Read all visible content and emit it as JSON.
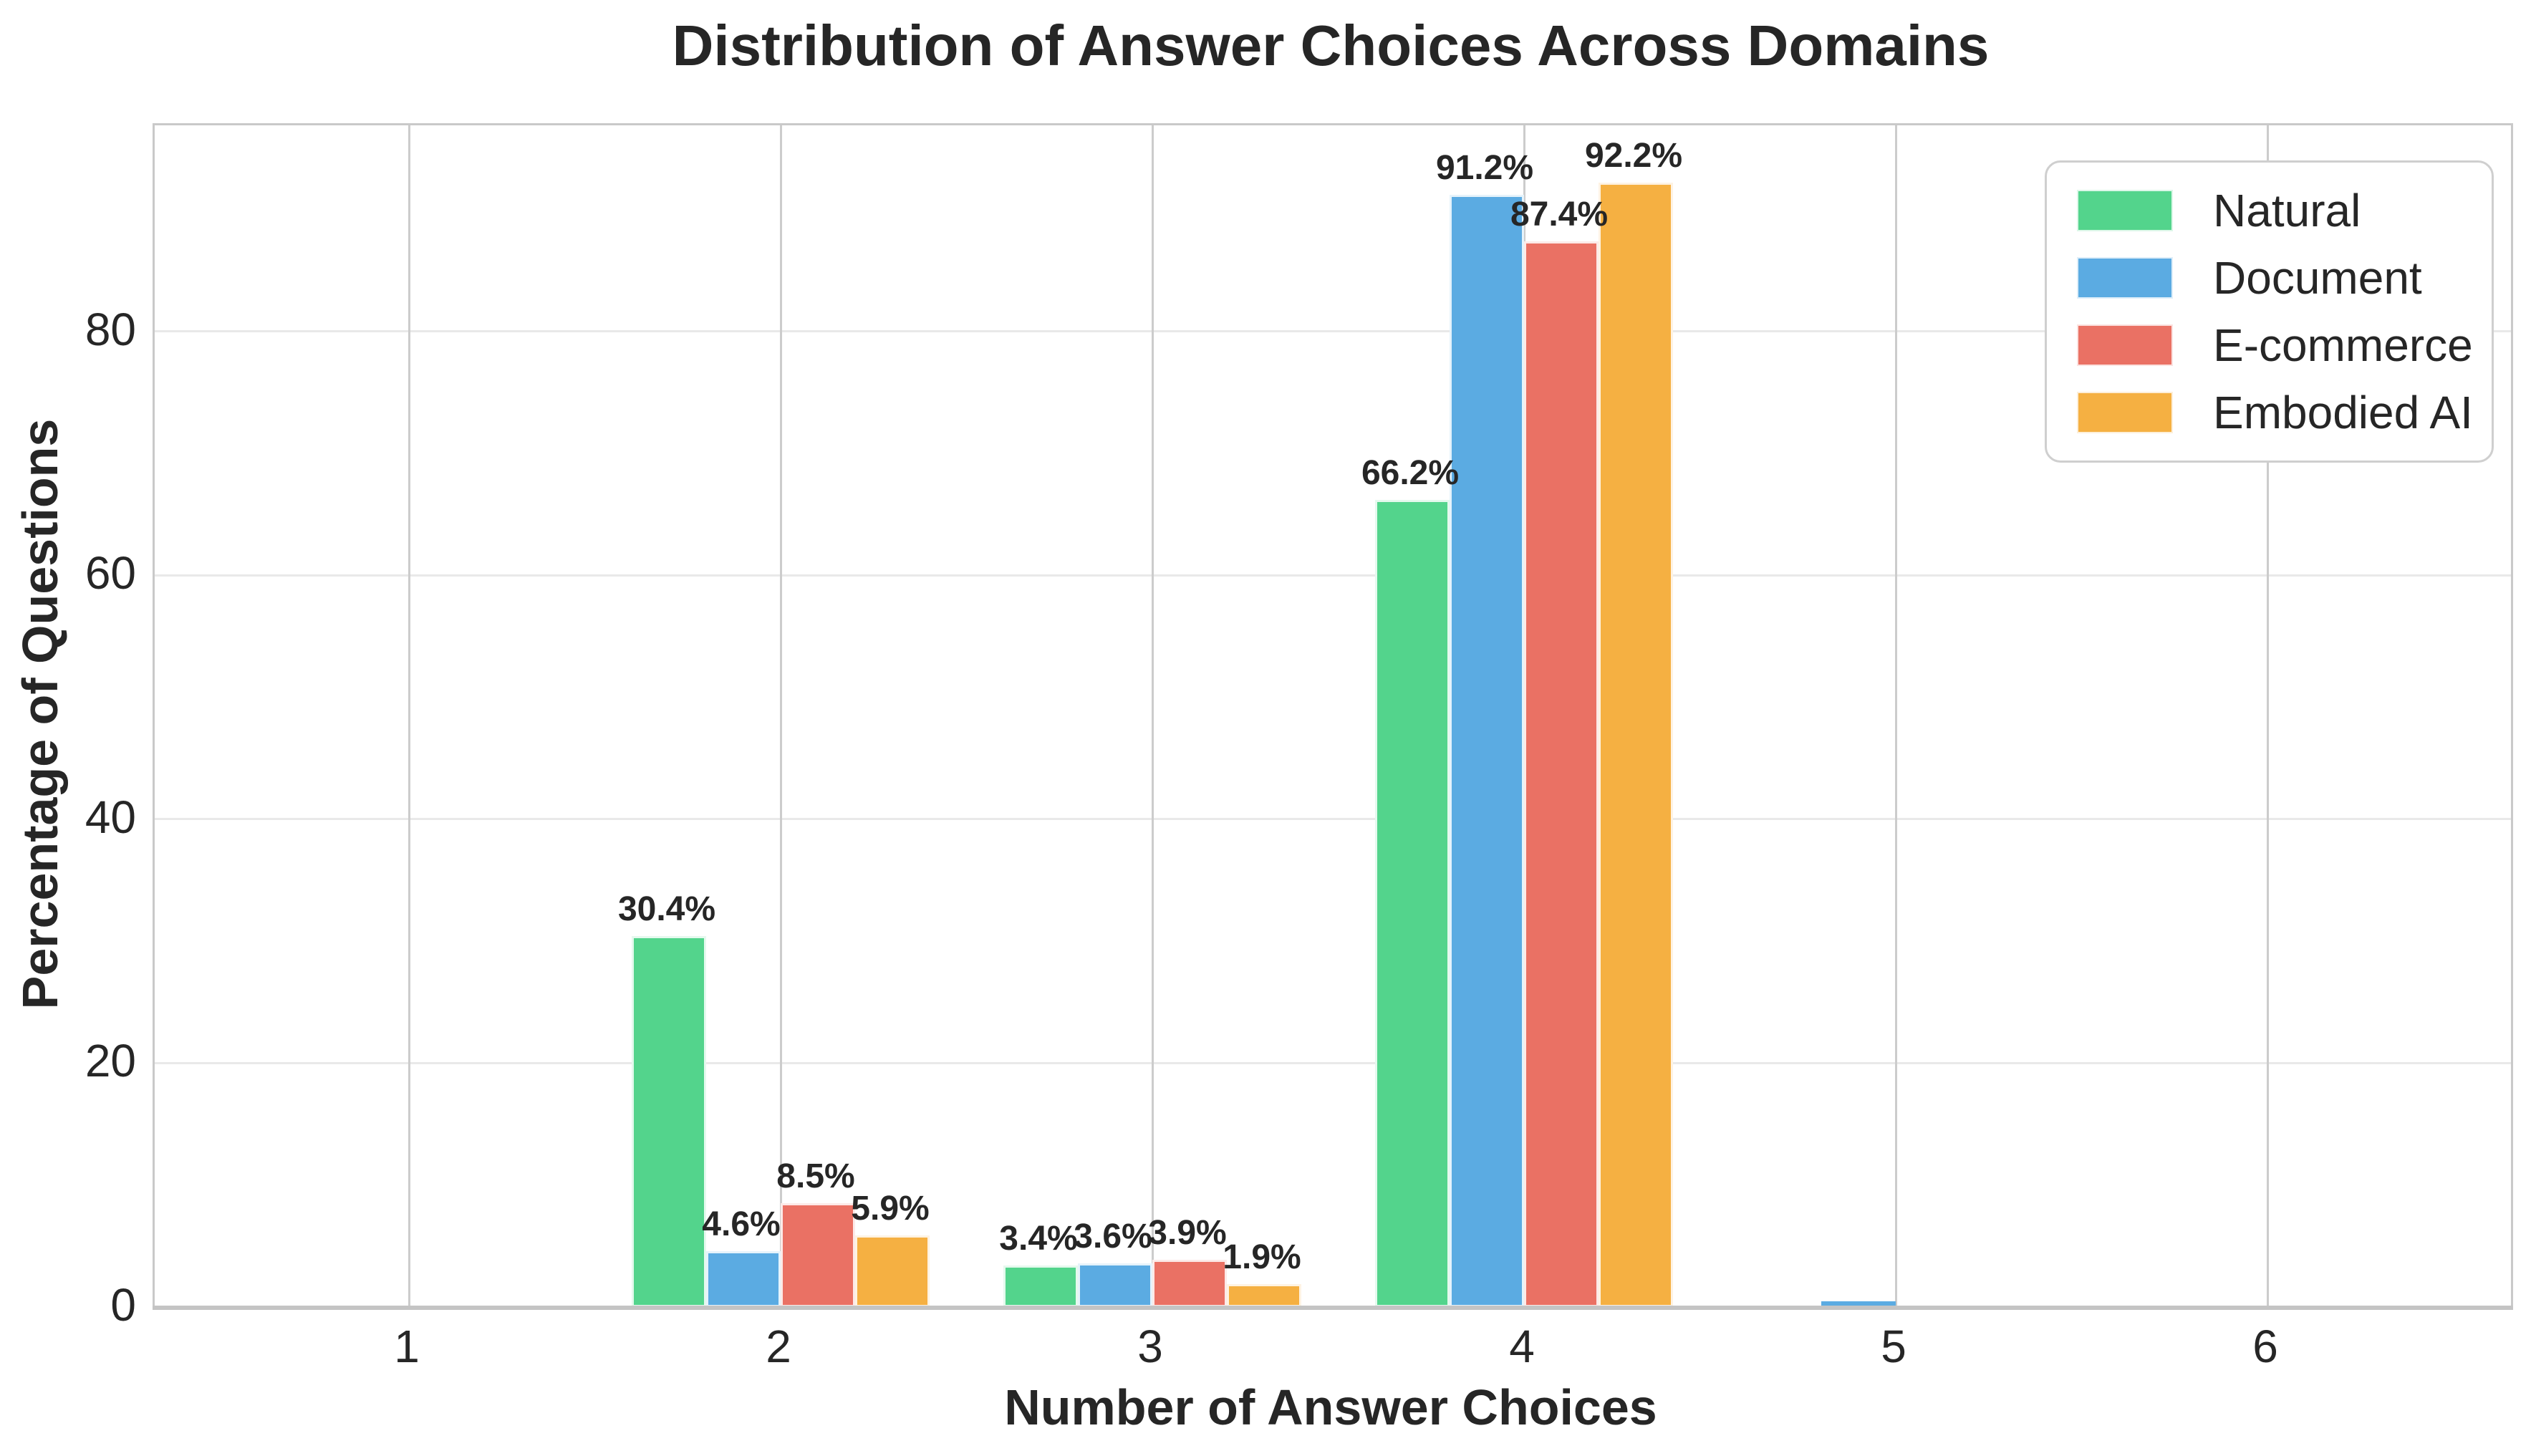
{
  "chart_data": {
    "type": "bar",
    "title": "Distribution of Answer Choices Across Domains",
    "xlabel": "Number of Answer Choices",
    "ylabel": "Percentage of Questions",
    "categories": [
      "1",
      "2",
      "3",
      "4",
      "5",
      "6"
    ],
    "series": [
      {
        "name": "Natural",
        "color": "#53d48c",
        "values": [
          0,
          30.4,
          3.4,
          66.2,
          0,
          0
        ]
      },
      {
        "name": "Document",
        "color": "#5babe2",
        "values": [
          0,
          4.6,
          3.6,
          91.2,
          0.5,
          0
        ]
      },
      {
        "name": "E-commerce",
        "color": "#ea7164",
        "values": [
          0,
          8.5,
          3.9,
          87.4,
          0.1,
          0
        ]
      },
      {
        "name": "Embodied AI",
        "color": "#f5b042",
        "values": [
          0,
          5.9,
          1.9,
          92.2,
          0,
          0
        ]
      }
    ],
    "bar_labels": {
      "format": "{value}%",
      "min_value_to_show": 1,
      "shown": [
        "30.4%",
        "4.6%",
        "8.5%",
        "5.9%",
        "3.4%",
        "3.6%",
        "3.9%",
        "1.9%",
        "66.2%",
        "91.2%",
        "87.4%",
        "92.2%"
      ]
    },
    "yticks": [
      "0",
      "20",
      "40",
      "60",
      "80"
    ],
    "ylim": [
      0,
      96.9
    ],
    "legend_position": "upper right",
    "grid": "both",
    "colors": {
      "text": "#262626",
      "horizontal_grid": "#e9e9e9",
      "vertical_grid": "#cccccc",
      "spine": "#c9c9c9",
      "bottom_axis": "#c4c4c4",
      "background": "#ffffff"
    }
  }
}
